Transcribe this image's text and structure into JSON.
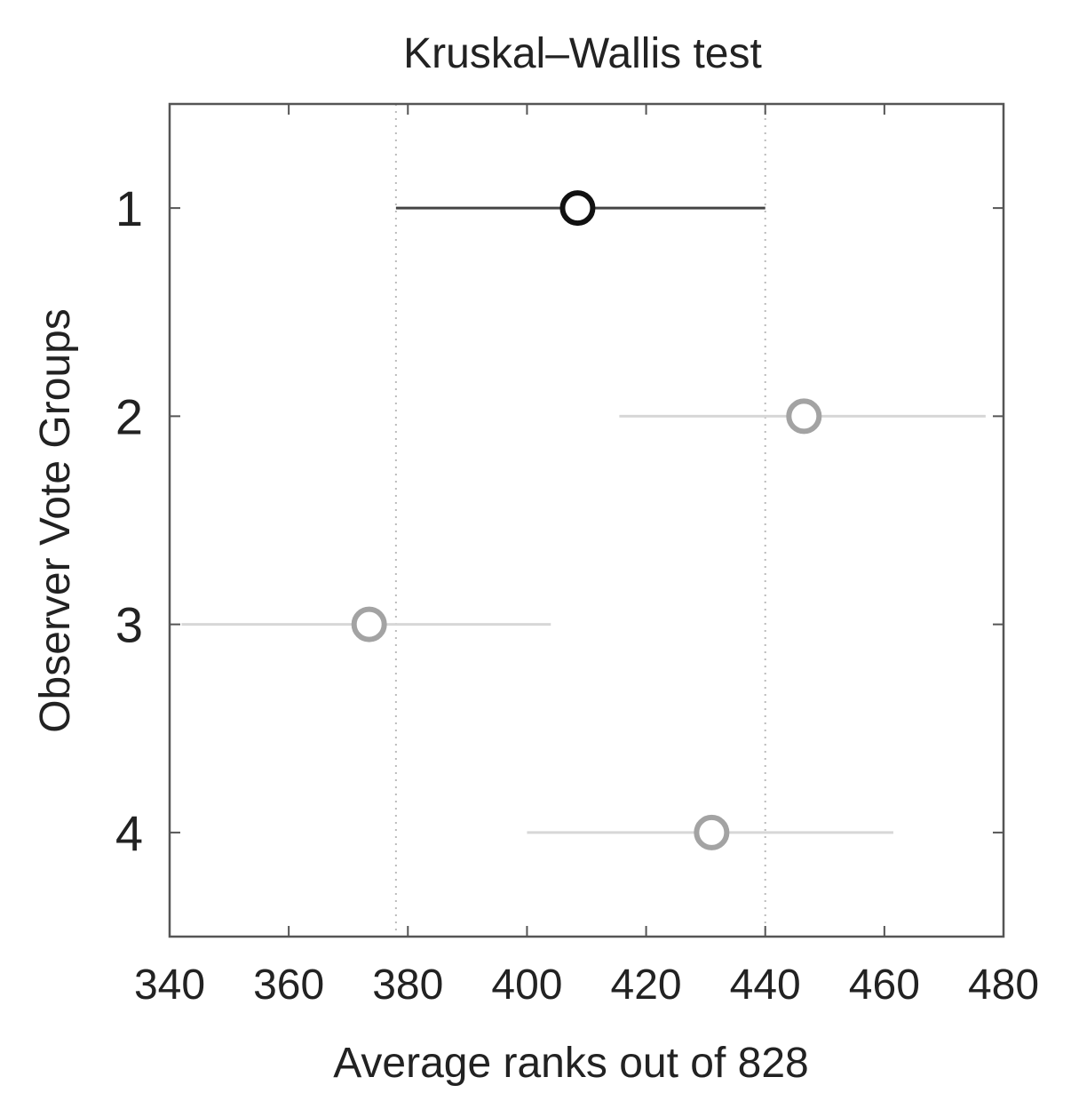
{
  "chart_data": {
    "type": "scatter",
    "title": "Kruskal–Wallis test",
    "xlabel": "Average ranks out of 828",
    "ylabel": "Observer Vote Groups",
    "xlim": [
      340,
      480
    ],
    "ylim": [
      0.5,
      4.5
    ],
    "y_reversed": true,
    "x_ticks": [
      340,
      360,
      380,
      400,
      420,
      440,
      460,
      480
    ],
    "y_ticks": [
      1,
      2,
      3,
      4
    ],
    "grid": false,
    "reference_lines_x": [
      378,
      440
    ],
    "series": [
      {
        "points": [
          {
            "group": 1,
            "mean": 408.5,
            "low": 378,
            "high": 440,
            "highlighted": true
          },
          {
            "group": 2,
            "mean": 446.5,
            "low": 415.5,
            "high": 477,
            "highlighted": false
          },
          {
            "group": 3,
            "mean": 373.5,
            "low": 342,
            "high": 404,
            "highlighted": false
          },
          {
            "group": 4,
            "mean": 431,
            "low": 400,
            "high": 461.5,
            "highlighted": false
          }
        ]
      }
    ],
    "colors": {
      "highlight_marker": "#111111",
      "highlight_line": "#444444",
      "other_marker": "#a3a3a3",
      "other_line": "#d7d7d7",
      "axis": "#555555",
      "reference_line": "#bbbbbb"
    }
  }
}
